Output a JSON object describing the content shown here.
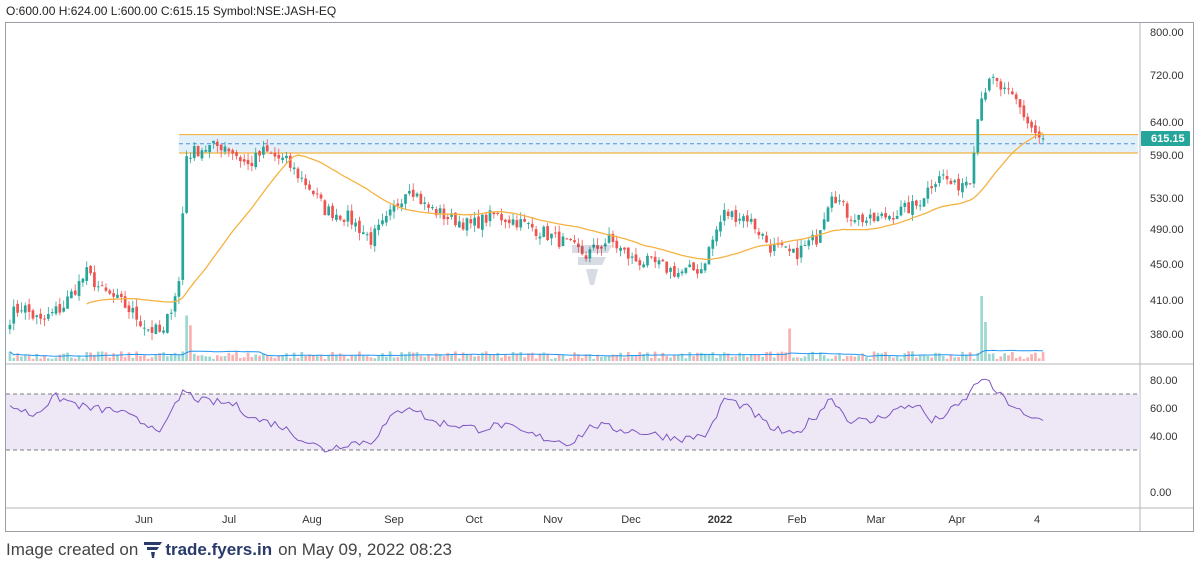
{
  "ohlc_bar": {
    "o_label": "O:",
    "o_value": "600.00",
    "h_label": "H:",
    "h_value": "624.00",
    "l_label": "L:",
    "l_value": "600.00",
    "c_label": "C:",
    "c_value": "615.15",
    "symbol_label": "Symbol:",
    "symbol_value": "NSE:JASH-EQ"
  },
  "footer": {
    "prefix": "Image created on",
    "brand": "trade.fyers.in",
    "suffix": "on May 09, 2022 08:23"
  },
  "colors": {
    "up": "#26a69a",
    "down": "#ef5350",
    "ma": "#f5b342",
    "rsi_line": "#7e57c2",
    "rsi_band": "#ede7f6",
    "zone_fill": "#cfe6f7",
    "zone_border": "#f5b342",
    "price_badge": "#26a69a",
    "volume_ma": "#2196f3"
  },
  "chart_data": [
    {
      "type": "candlestick",
      "symbol": "NSE:JASH-EQ",
      "last_price": "615.15",
      "price_ticks": [
        "800.00",
        "720.00",
        "640.00",
        "590.00",
        "530.00",
        "490.00",
        "450.00",
        "410.00",
        "380.00"
      ],
      "x_ticks": [
        "Jun",
        "Jul",
        "Aug",
        "Sep",
        "Oct",
        "Nov",
        "Dec",
        "2022",
        "Feb",
        "Mar",
        "Apr",
        "4"
      ],
      "bold_x_ticks": [
        "2022"
      ],
      "support_zone": [
        603,
        615
      ],
      "series_keypoints": [
        {
          "i": 0,
          "c": 395
        },
        {
          "i": 3,
          "c": 405
        },
        {
          "i": 8,
          "c": 390
        },
        {
          "i": 14,
          "c": 405
        },
        {
          "i": 20,
          "c": 440
        },
        {
          "i": 24,
          "c": 420
        },
        {
          "i": 30,
          "c": 405
        },
        {
          "i": 36,
          "c": 385
        },
        {
          "i": 40,
          "c": 380
        },
        {
          "i": 44,
          "c": 430
        },
        {
          "i": 46,
          "c": 590
        },
        {
          "i": 50,
          "c": 600
        },
        {
          "i": 56,
          "c": 605
        },
        {
          "i": 62,
          "c": 575
        },
        {
          "i": 66,
          "c": 595
        },
        {
          "i": 72,
          "c": 580
        },
        {
          "i": 78,
          "c": 545
        },
        {
          "i": 82,
          "c": 515
        },
        {
          "i": 88,
          "c": 505
        },
        {
          "i": 94,
          "c": 478
        },
        {
          "i": 98,
          "c": 500
        },
        {
          "i": 104,
          "c": 548
        },
        {
          "i": 108,
          "c": 520
        },
        {
          "i": 114,
          "c": 505
        },
        {
          "i": 120,
          "c": 495
        },
        {
          "i": 126,
          "c": 508
        },
        {
          "i": 132,
          "c": 500
        },
        {
          "i": 138,
          "c": 488
        },
        {
          "i": 144,
          "c": 475
        },
        {
          "i": 150,
          "c": 460
        },
        {
          "i": 156,
          "c": 478
        },
        {
          "i": 162,
          "c": 455
        },
        {
          "i": 168,
          "c": 450
        },
        {
          "i": 174,
          "c": 440
        },
        {
          "i": 180,
          "c": 445
        },
        {
          "i": 186,
          "c": 510
        },
        {
          "i": 192,
          "c": 505
        },
        {
          "i": 198,
          "c": 470
        },
        {
          "i": 204,
          "c": 460
        },
        {
          "i": 210,
          "c": 480
        },
        {
          "i": 214,
          "c": 540
        },
        {
          "i": 218,
          "c": 510
        },
        {
          "i": 224,
          "c": 500
        },
        {
          "i": 230,
          "c": 510
        },
        {
          "i": 236,
          "c": 520
        },
        {
          "i": 242,
          "c": 565
        },
        {
          "i": 246,
          "c": 545
        },
        {
          "i": 250,
          "c": 560
        },
        {
          "i": 253,
          "c": 690
        },
        {
          "i": 256,
          "c": 710
        },
        {
          "i": 259,
          "c": 690
        },
        {
          "i": 262,
          "c": 675
        },
        {
          "i": 265,
          "c": 640
        },
        {
          "i": 268,
          "c": 615
        }
      ],
      "volume_spikes": [
        {
          "i": 46,
          "h": 0.7
        },
        {
          "i": 47,
          "h": 0.55
        },
        {
          "i": 203,
          "h": 0.5
        },
        {
          "i": 253,
          "h": 1.0
        },
        {
          "i": 254,
          "h": 0.6
        }
      ]
    },
    {
      "type": "line",
      "name": "RSI",
      "y_ticks": [
        "80.00",
        "60.00",
        "40.00",
        "0.00"
      ],
      "band": [
        30,
        70
      ],
      "ylim": [
        0,
        90
      ],
      "keypoints": [
        {
          "i": 0,
          "v": 62
        },
        {
          "i": 6,
          "v": 55
        },
        {
          "i": 12,
          "v": 68
        },
        {
          "i": 20,
          "v": 60
        },
        {
          "i": 28,
          "v": 58
        },
        {
          "i": 34,
          "v": 50
        },
        {
          "i": 40,
          "v": 45
        },
        {
          "i": 45,
          "v": 72
        },
        {
          "i": 50,
          "v": 65
        },
        {
          "i": 58,
          "v": 63
        },
        {
          "i": 64,
          "v": 52
        },
        {
          "i": 70,
          "v": 48
        },
        {
          "i": 76,
          "v": 38
        },
        {
          "i": 82,
          "v": 30
        },
        {
          "i": 88,
          "v": 35
        },
        {
          "i": 94,
          "v": 36
        },
        {
          "i": 100,
          "v": 55
        },
        {
          "i": 104,
          "v": 62
        },
        {
          "i": 110,
          "v": 50
        },
        {
          "i": 116,
          "v": 48
        },
        {
          "i": 122,
          "v": 45
        },
        {
          "i": 128,
          "v": 48
        },
        {
          "i": 134,
          "v": 42
        },
        {
          "i": 140,
          "v": 38
        },
        {
          "i": 146,
          "v": 35
        },
        {
          "i": 152,
          "v": 48
        },
        {
          "i": 158,
          "v": 45
        },
        {
          "i": 164,
          "v": 43
        },
        {
          "i": 170,
          "v": 40
        },
        {
          "i": 176,
          "v": 38
        },
        {
          "i": 182,
          "v": 42
        },
        {
          "i": 186,
          "v": 67
        },
        {
          "i": 192,
          "v": 60
        },
        {
          "i": 198,
          "v": 46
        },
        {
          "i": 204,
          "v": 40
        },
        {
          "i": 210,
          "v": 55
        },
        {
          "i": 214,
          "v": 68
        },
        {
          "i": 218,
          "v": 52
        },
        {
          "i": 224,
          "v": 50
        },
        {
          "i": 230,
          "v": 58
        },
        {
          "i": 236,
          "v": 63
        },
        {
          "i": 240,
          "v": 50
        },
        {
          "i": 244,
          "v": 56
        },
        {
          "i": 248,
          "v": 64
        },
        {
          "i": 253,
          "v": 82
        },
        {
          "i": 256,
          "v": 74
        },
        {
          "i": 259,
          "v": 66
        },
        {
          "i": 262,
          "v": 60
        },
        {
          "i": 265,
          "v": 52
        },
        {
          "i": 268,
          "v": 52
        }
      ]
    }
  ]
}
